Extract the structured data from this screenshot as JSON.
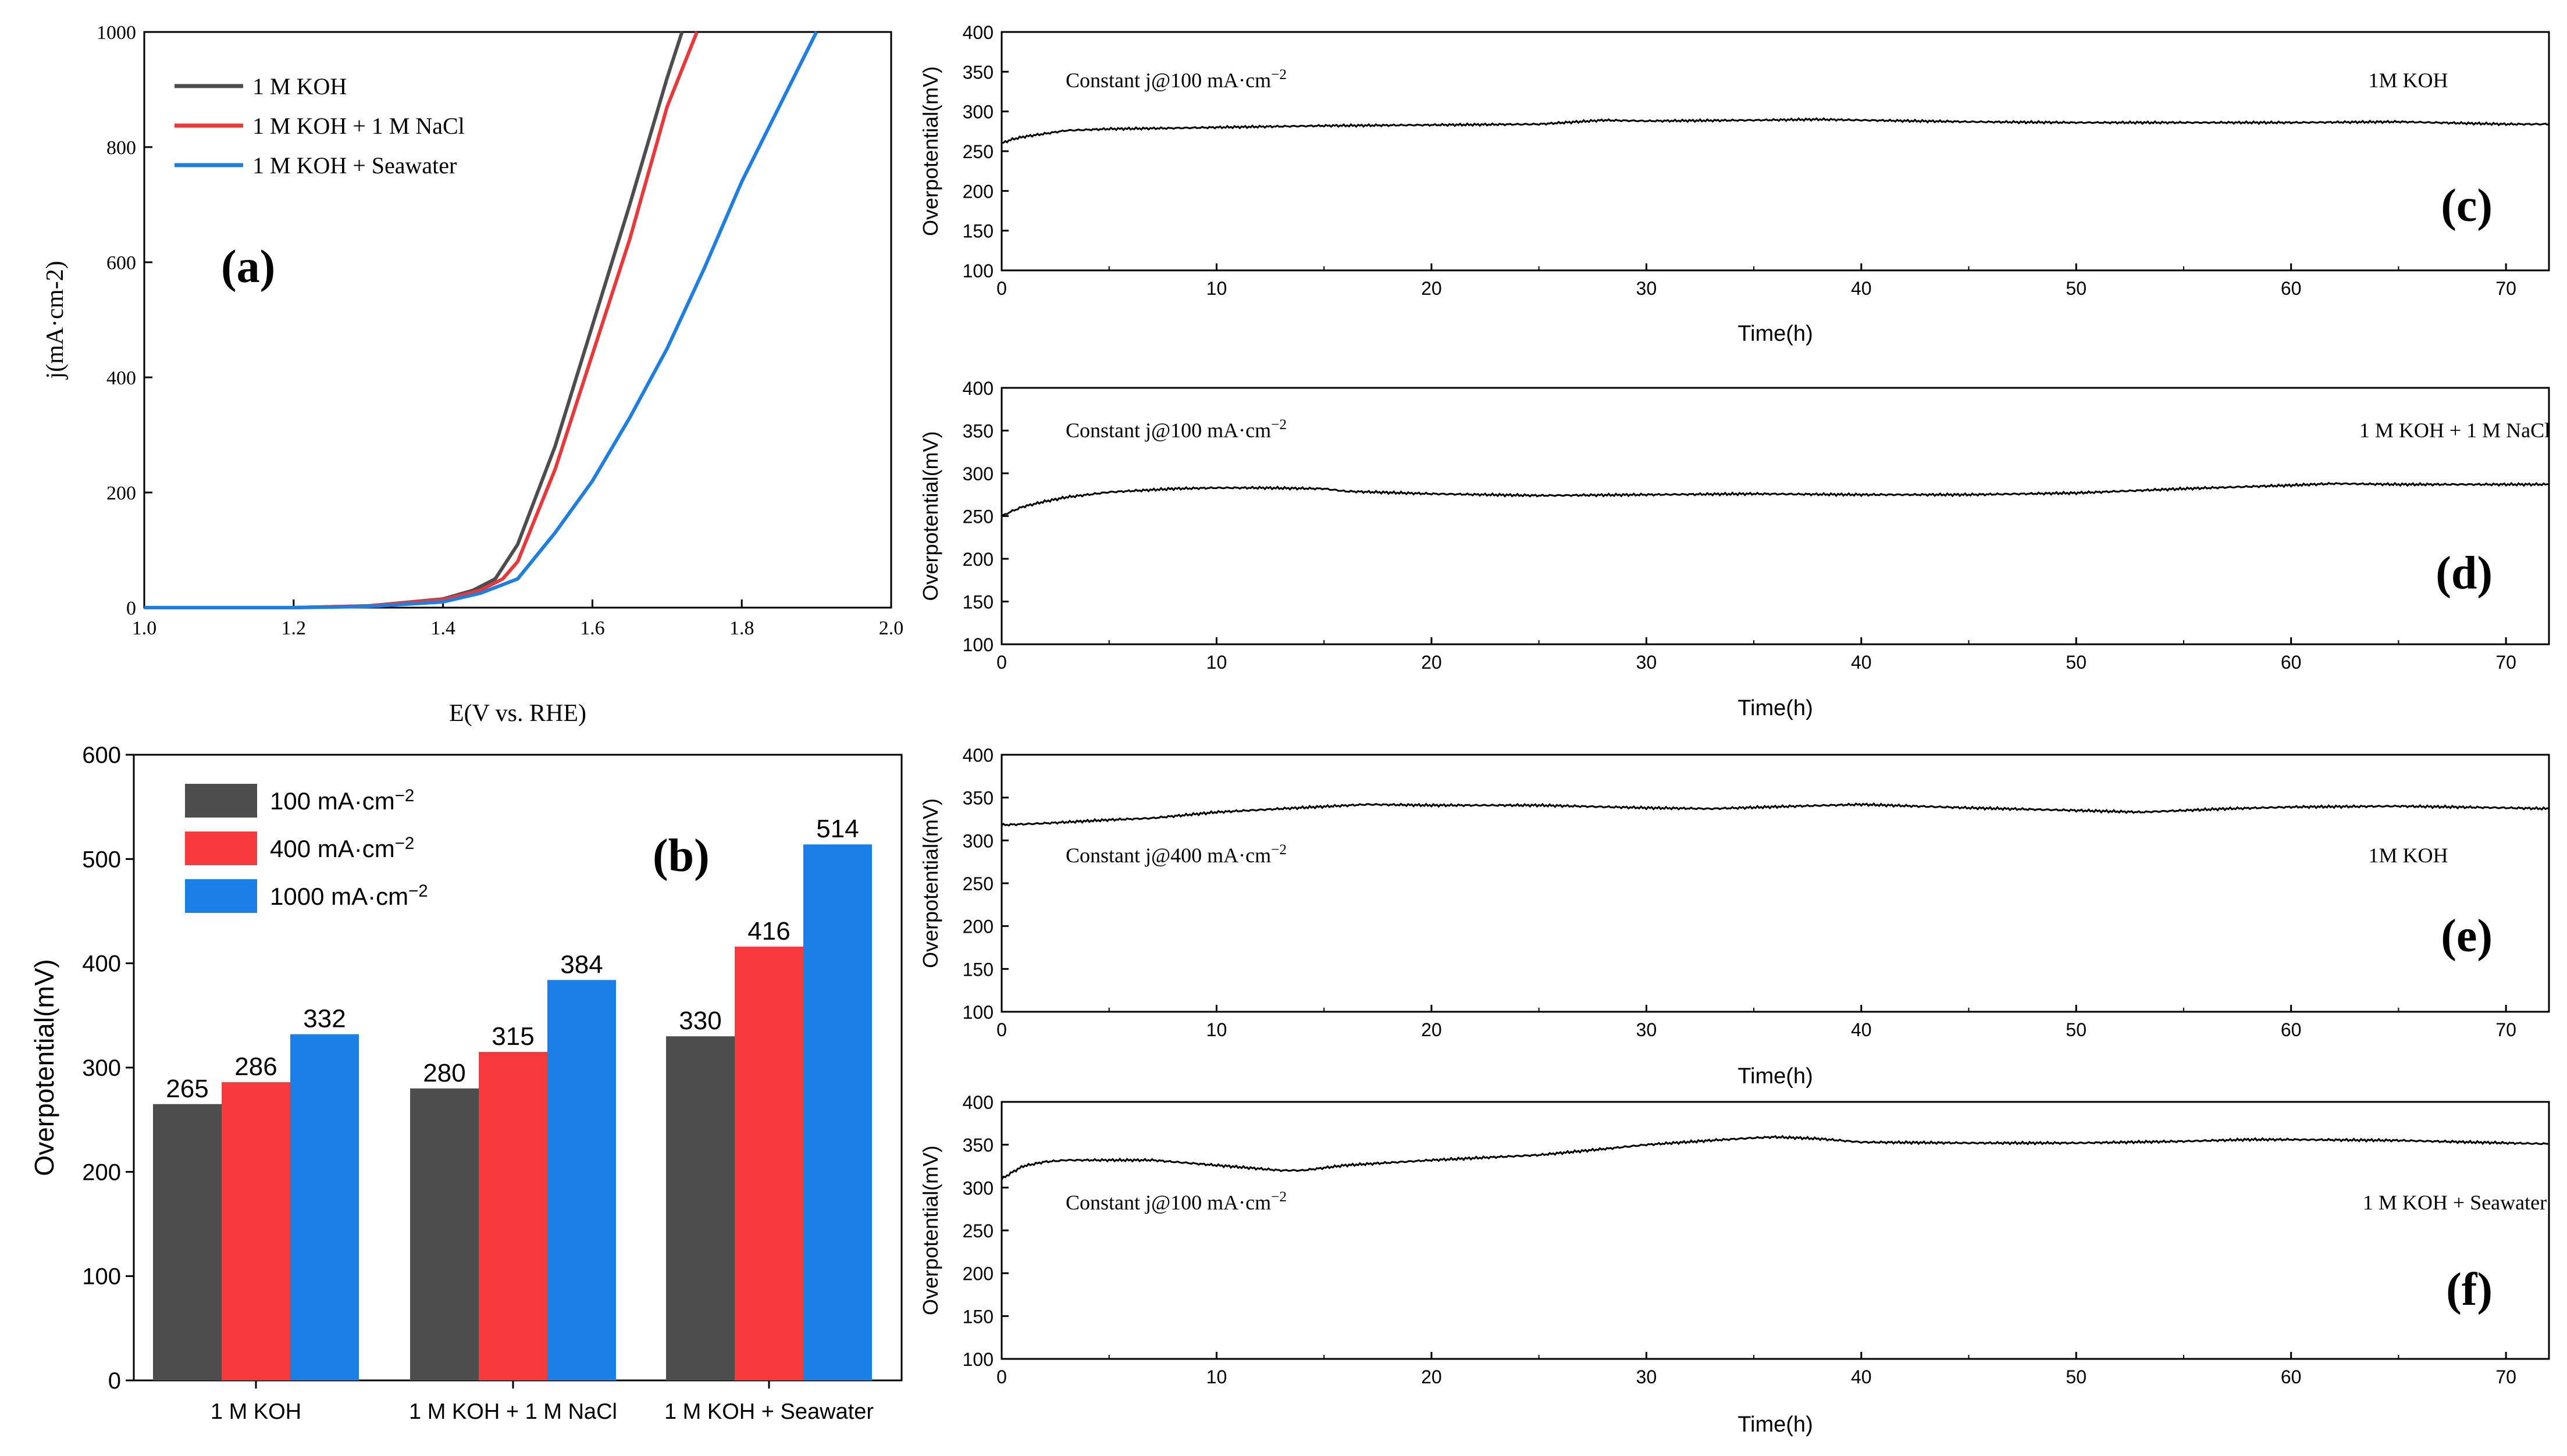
{
  "chart_data": [
    {
      "panel": "(a)",
      "type": "line",
      "xlabel": "E(V vs. RHE)",
      "ylabel": "j(mA·cm-2)",
      "xlim": [
        1.0,
        2.0
      ],
      "ylim": [
        0,
        1000
      ],
      "xticks": [
        "1.0",
        "1.2",
        "1.4",
        "1.6",
        "1.8",
        "2.0"
      ],
      "yticks": [
        "0",
        "200",
        "400",
        "600",
        "800",
        "1000"
      ],
      "legend_position": "top-left",
      "series": [
        {
          "name": "1 M KOH",
          "color": "#4d4d4d",
          "x": [
            1.0,
            1.2,
            1.3,
            1.4,
            1.44,
            1.47,
            1.5,
            1.55,
            1.6,
            1.65,
            1.7,
            1.72
          ],
          "y": [
            0,
            0,
            3,
            15,
            30,
            50,
            110,
            280,
            490,
            700,
            920,
            1000
          ]
        },
        {
          "name": "1 M KOH + 1 M NaCl",
          "color": "#e8383a",
          "x": [
            1.0,
            1.2,
            1.3,
            1.4,
            1.45,
            1.48,
            1.5,
            1.55,
            1.6,
            1.65,
            1.7,
            1.74
          ],
          "y": [
            0,
            0,
            3,
            14,
            30,
            50,
            80,
            240,
            440,
            640,
            870,
            1000
          ]
        },
        {
          "name": "1 M KOH + Seawater",
          "color": "#1e7fe0",
          "x": [
            1.0,
            1.2,
            1.3,
            1.4,
            1.45,
            1.5,
            1.55,
            1.6,
            1.65,
            1.7,
            1.75,
            1.8,
            1.85,
            1.9
          ],
          "y": [
            0,
            0,
            2,
            10,
            25,
            50,
            130,
            220,
            330,
            450,
            590,
            740,
            870,
            1000
          ]
        }
      ],
      "annotation": "(a)"
    },
    {
      "panel": "(b)",
      "type": "bar",
      "ylabel": "Overpotential(mV)",
      "ylim": [
        0,
        600
      ],
      "yticks": [
        "0",
        "100",
        "200",
        "300",
        "400",
        "500",
        "600"
      ],
      "categories": [
        "1 M KOH",
        "1 M KOH + 1 M NaCl",
        "1 M KOH + Seawater"
      ],
      "series": [
        {
          "name": "100 mA·cm−2",
          "color": "#4d4d4d",
          "values": [
            265,
            280,
            330
          ]
        },
        {
          "name": "400 mA·cm−2",
          "color": "#f5393c",
          "values": [
            286,
            315,
            416
          ]
        },
        {
          "name": "1000 mA·cm−2",
          "color": "#1a7fe6",
          "values": [
            332,
            384,
            514
          ]
        }
      ],
      "legend_position": "top-left",
      "annotation": "(b)"
    },
    {
      "panel": "(c)",
      "type": "line",
      "xlabel": "Time(h)",
      "ylabel": "Overpotential(mV)",
      "xlim": [
        0,
        72
      ],
      "ylim": [
        100,
        400
      ],
      "xticks": [
        "0",
        "10",
        "20",
        "30",
        "40",
        "50",
        "60",
        "70"
      ],
      "yticks": [
        "100",
        "150",
        "200",
        "250",
        "300",
        "350",
        "400"
      ],
      "text_left": "Constant j@100 mA·cm−2",
      "text_right": "1M KOH",
      "annotation": "(c)",
      "series": [
        {
          "x": [
            0,
            0.5,
            1,
            2,
            3,
            5,
            8,
            10,
            15,
            20,
            25,
            28,
            30,
            35,
            38,
            40,
            45,
            50,
            55,
            60,
            65,
            70,
            72
          ],
          "y": [
            260,
            265,
            268,
            272,
            276,
            278,
            279,
            280,
            282,
            283,
            284,
            289,
            288,
            289,
            290,
            289,
            287,
            286,
            286,
            286,
            287,
            284,
            284
          ]
        }
      ]
    },
    {
      "panel": "(d)",
      "type": "line",
      "xlabel": "Time(h)",
      "ylabel": "Overpotential(mV)",
      "xlim": [
        0,
        72
      ],
      "ylim": [
        100,
        400
      ],
      "xticks": [
        "0",
        "10",
        "20",
        "30",
        "40",
        "50",
        "60",
        "70"
      ],
      "yticks": [
        "100",
        "150",
        "200",
        "250",
        "300",
        "350",
        "400"
      ],
      "text_left": "Constant j@100 mA·cm−2",
      "text_right": "1 M KOH + 1 M NaCl",
      "annotation": "(d)",
      "series": [
        {
          "x": [
            0,
            0.5,
            1,
            2,
            3,
            5,
            8,
            10,
            12,
            15,
            16,
            20,
            25,
            30,
            35,
            40,
            45,
            50,
            55,
            60,
            62,
            65,
            70,
            72
          ],
          "y": [
            250,
            256,
            261,
            267,
            272,
            278,
            282,
            283,
            283,
            282,
            279,
            276,
            274,
            275,
            276,
            275,
            275,
            277,
            282,
            286,
            288,
            287,
            287,
            287
          ]
        }
      ]
    },
    {
      "panel": "(e)",
      "type": "line",
      "xlabel": "Time(h)",
      "ylabel": "Overpotential(mV)",
      "xlim": [
        0,
        72
      ],
      "ylim": [
        100,
        400
      ],
      "xticks": [
        "0",
        "10",
        "20",
        "30",
        "40",
        "50",
        "60",
        "70"
      ],
      "yticks": [
        "100",
        "150",
        "200",
        "250",
        "300",
        "350",
        "400"
      ],
      "text_left": "Constant j@400 mA·cm−2",
      "text_right": "1M KOH",
      "annotation": "(e)",
      "series": [
        {
          "x": [
            0,
            2,
            5,
            7,
            10,
            13,
            17,
            20,
            25,
            30,
            33,
            37,
            40,
            45,
            50,
            53,
            57,
            60,
            65,
            70,
            72
          ],
          "y": [
            318,
            320,
            324,
            326,
            333,
            337,
            342,
            341,
            341,
            338,
            337,
            340,
            342,
            338,
            335,
            333,
            337,
            339,
            340,
            338,
            337
          ]
        }
      ]
    },
    {
      "panel": "(f)",
      "type": "line",
      "xlabel": "Time(h)",
      "ylabel": "Overpotential(mV)",
      "xlim": [
        0,
        72
      ],
      "ylim": [
        100,
        400
      ],
      "xticks": [
        "0",
        "10",
        "20",
        "30",
        "40",
        "50",
        "60",
        "70"
      ],
      "yticks": [
        "100",
        "150",
        "200",
        "250",
        "300",
        "350",
        "400"
      ],
      "text_left": "Constant j@100 mA·cm−2",
      "text_right": "1 M KOH + Seawater",
      "annotation": "(f)",
      "series": [
        {
          "x": [
            0,
            0.5,
            1,
            2,
            3,
            5,
            7,
            9,
            11,
            13,
            14,
            16,
            20,
            25,
            28,
            30,
            33,
            35,
            36,
            38,
            40,
            45,
            50,
            55,
            58,
            60,
            65,
            70,
            72
          ],
          "y": [
            310,
            318,
            325,
            330,
            332,
            332,
            332,
            328,
            324,
            320,
            320,
            326,
            332,
            338,
            345,
            350,
            355,
            358,
            359,
            357,
            353,
            352,
            352,
            354,
            356,
            356,
            355,
            352,
            351
          ]
        }
      ]
    }
  ]
}
